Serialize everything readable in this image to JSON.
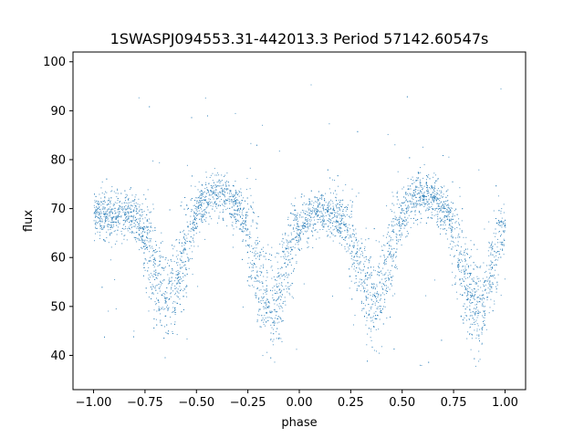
{
  "chart_data": {
    "type": "scatter",
    "title": "1SWASPJ094553.31-442013.3 Period 57142.60547s",
    "xlabel": "phase",
    "ylabel": "flux",
    "xlim": [
      -1.1,
      1.1
    ],
    "ylim": [
      33,
      102
    ],
    "xticks": [
      -1.0,
      -0.75,
      -0.5,
      -0.25,
      0.0,
      0.25,
      0.5,
      0.75,
      1.0
    ],
    "xtick_labels": [
      "−1.00",
      "−0.75",
      "−0.50",
      "−0.25",
      "0.00",
      "0.25",
      "0.50",
      "0.75",
      "1.00"
    ],
    "yticks": [
      40,
      50,
      60,
      70,
      80,
      90,
      100
    ],
    "ytick_labels": [
      "40",
      "50",
      "60",
      "70",
      "80",
      "90",
      "100"
    ],
    "grid": false,
    "marker_color": "#1f77b4",
    "series": [
      {
        "phase_range": [
          -1.0,
          1.0
        ],
        "baseline_flux": 69,
        "scatter_sigma": 2.4,
        "dips": [
          {
            "phase": -0.64,
            "min_flux": 52
          },
          {
            "phase": -0.14,
            "min_flux": 50
          },
          {
            "phase": 0.36,
            "min_flux": 52
          },
          {
            "phase": 0.86,
            "min_flux": 50
          }
        ],
        "humps": [
          {
            "phase": -0.4,
            "max_flux": 73
          },
          {
            "phase": 0.6,
            "max_flux": 73
          }
        ]
      }
    ]
  }
}
